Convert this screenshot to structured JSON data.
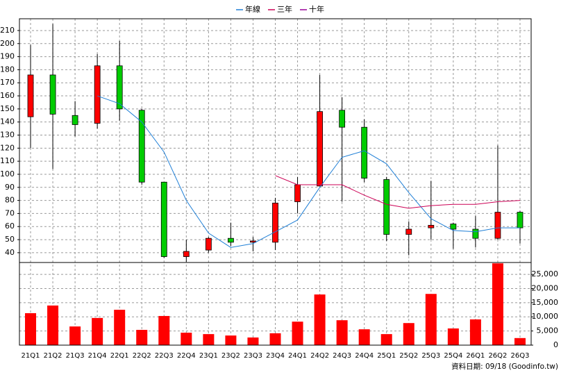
{
  "chart_data": [
    {
      "type": "candlestick",
      "open": [
        144,
        176,
        145,
        139,
        183,
        149,
        94,
        37,
        42,
        51,
        48,
        48,
        79,
        91,
        149,
        136,
        96,
        54,
        59,
        62,
        58,
        51,
        71
      ],
      "high": [
        199,
        215,
        156,
        192,
        202,
        150,
        94,
        50,
        52,
        63,
        52,
        82,
        98,
        176,
        159,
        142,
        98,
        64,
        95,
        63,
        68,
        122,
        72
      ],
      "low": [
        120,
        104,
        129,
        135,
        141,
        92,
        36,
        33,
        40,
        45,
        41,
        42,
        70,
        91,
        79,
        94,
        49,
        38,
        50,
        43,
        44,
        50,
        47
      ],
      "close": [
        176,
        146,
        138,
        183,
        150,
        94,
        37,
        41,
        51,
        48,
        49,
        78,
        92,
        148,
        136,
        97,
        54,
        58,
        61,
        58,
        51,
        71,
        59
      ],
      "up_color": "#ff0000",
      "down_color": "#00cc00",
      "lines": [
        {
          "name": "年線",
          "color": "#1f7fd6",
          "values": [
            null,
            null,
            null,
            160,
            154,
            140,
            117,
            80,
            55,
            44,
            47,
            56,
            65,
            90,
            113,
            118,
            108,
            86,
            66,
            57,
            56,
            59,
            59
          ]
        },
        {
          "name": "三年",
          "color": "#cc0055",
          "values": [
            null,
            null,
            null,
            null,
            null,
            null,
            null,
            null,
            null,
            null,
            null,
            99,
            92,
            92,
            92,
            84,
            77,
            74,
            76,
            77,
            77,
            79,
            80
          ]
        },
        {
          "name": "十年",
          "color": "#990099",
          "values": [
            null,
            null,
            null,
            null,
            null,
            null,
            null,
            null,
            null,
            null,
            null,
            null,
            null,
            null,
            null,
            null,
            null,
            null,
            null,
            null,
            null,
            null,
            null
          ]
        }
      ],
      "ylim": [
        32.5,
        219
      ],
      "yticks": [
        40,
        50,
        60,
        70,
        80,
        90,
        100,
        110,
        120,
        130,
        140,
        150,
        160,
        170,
        180,
        190,
        200,
        210
      ],
      "grid": true
    },
    {
      "type": "bar",
      "categories": [
        "21Q1",
        "21Q2",
        "21Q3",
        "21Q4",
        "22Q1",
        "22Q2",
        "22Q3",
        "22Q4",
        "23Q1",
        "23Q2",
        "23Q3",
        "23Q4",
        "24Q1",
        "24Q2",
        "24Q3",
        "24Q4",
        "25Q1",
        "25Q2",
        "25Q3",
        "25Q4",
        "26Q1",
        "26Q2",
        "26Q3"
      ],
      "values": [
        11300,
        14000,
        6600,
        9600,
        12500,
        5400,
        10300,
        4400,
        3900,
        3400,
        2700,
        4200,
        8300,
        17900,
        8800,
        5600,
        3900,
        7800,
        18100,
        5900,
        9100,
        28900,
        2500
      ],
      "color": "#ff0000",
      "ylim": [
        0,
        29200
      ],
      "yticks": [
        0,
        {
          "value": 5000,
          "label": "5,000"
        },
        {
          "value": 10000,
          "label": "10,000"
        },
        {
          "value": 15000,
          "label": "15,000"
        },
        {
          "value": 20000,
          "label": "20,000"
        },
        {
          "value": 25000,
          "label": "25,000"
        }
      ],
      "grid": true,
      "note": "資料日期: 09/18 (Goodinfo.tw)"
    }
  ]
}
